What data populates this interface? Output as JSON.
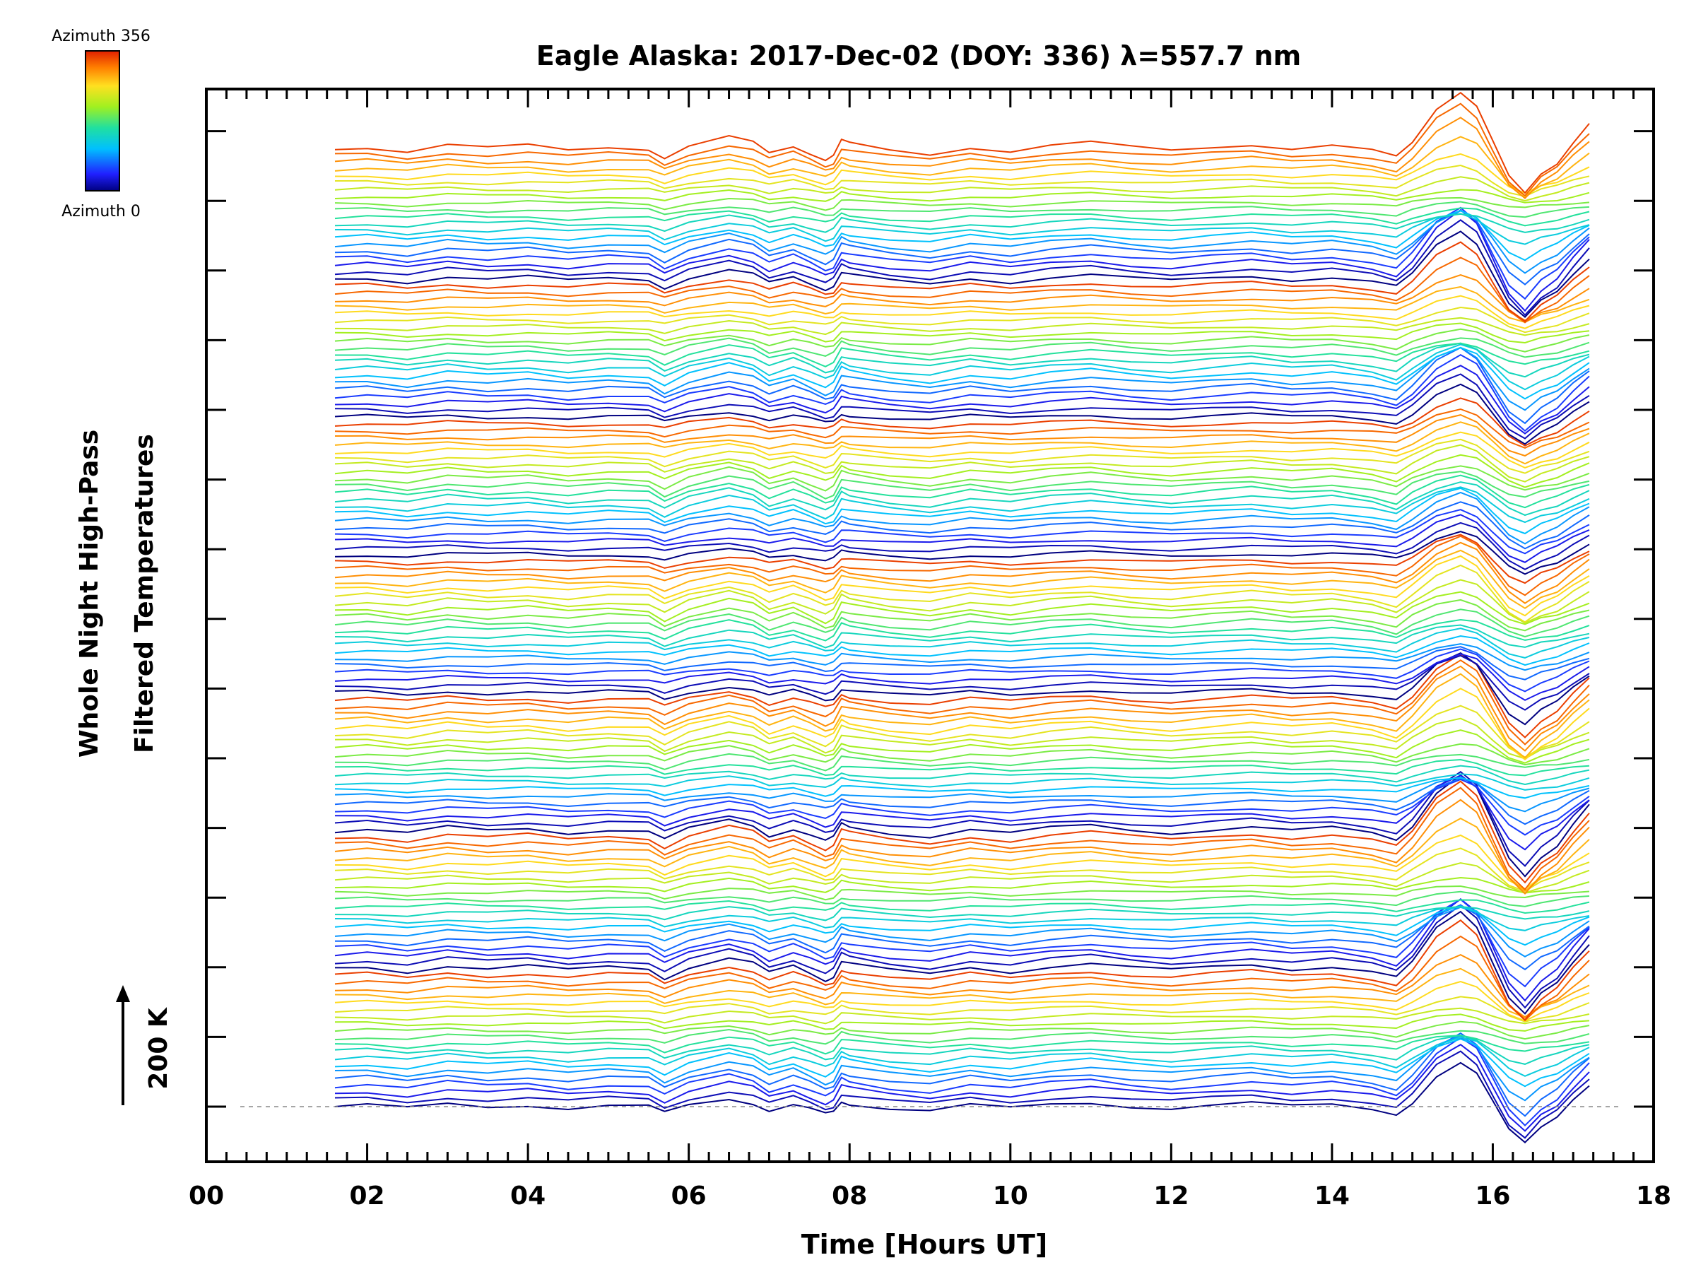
{
  "chart_data": {
    "type": "line",
    "title": "Eagle Alaska: 2017-Dec-02 (DOY: 336) λ=557.7 nm",
    "xlabel": "Time [Hours UT]",
    "ylabel_line1": "Whole Night High-Pass",
    "ylabel_line2": "Filtered Temperatures",
    "scale_label": "200 K",
    "xlim": [
      0,
      18
    ],
    "x_tick_labels": [
      "00",
      "02",
      "04",
      "06",
      "08",
      "10",
      "12",
      "14",
      "16",
      "18"
    ],
    "x_tick_values": [
      0,
      2,
      4,
      6,
      8,
      10,
      12,
      14,
      16,
      18
    ],
    "colorbar": {
      "top_label": "Azimuth 356",
      "bottom_label": "Azimuth 0",
      "colormap": "rainbow (blue to red)",
      "min": 0,
      "max": 356
    },
    "series_count": 140,
    "series_azimuth_step": 18,
    "series_time_range": [
      1.6,
      17.2
    ],
    "common_trace_shape": {
      "x": [
        1.6,
        2.0,
        2.5,
        3.0,
        3.5,
        4.0,
        4.5,
        5.0,
        5.5,
        5.7,
        6.0,
        6.5,
        6.8,
        7.0,
        7.3,
        7.5,
        7.7,
        7.8,
        7.9,
        8.0,
        8.5,
        9.0,
        9.5,
        10.0,
        10.5,
        11.0,
        11.5,
        12.0,
        12.5,
        13.0,
        13.5,
        14.0,
        14.5,
        14.8,
        15.0,
        15.3,
        15.6,
        15.8,
        16.0,
        16.2,
        16.4,
        16.6,
        16.8,
        17.0,
        17.2
      ],
      "y": [
        0,
        2,
        -3,
        4,
        0,
        3,
        -2,
        2,
        0,
        -10,
        2,
        12,
        6,
        -5,
        3,
        -4,
        -12,
        -8,
        8,
        5,
        -2,
        -6,
        2,
        -3,
        3,
        6,
        1,
        -2,
        2,
        5,
        0,
        3,
        -3,
        -10,
        4,
        28,
        40,
        30,
        5,
        -20,
        -32,
        -18,
        -10,
        5,
        18
      ]
    },
    "baseline_value": 0,
    "grid": false,
    "legend": "colorbar top-left"
  }
}
